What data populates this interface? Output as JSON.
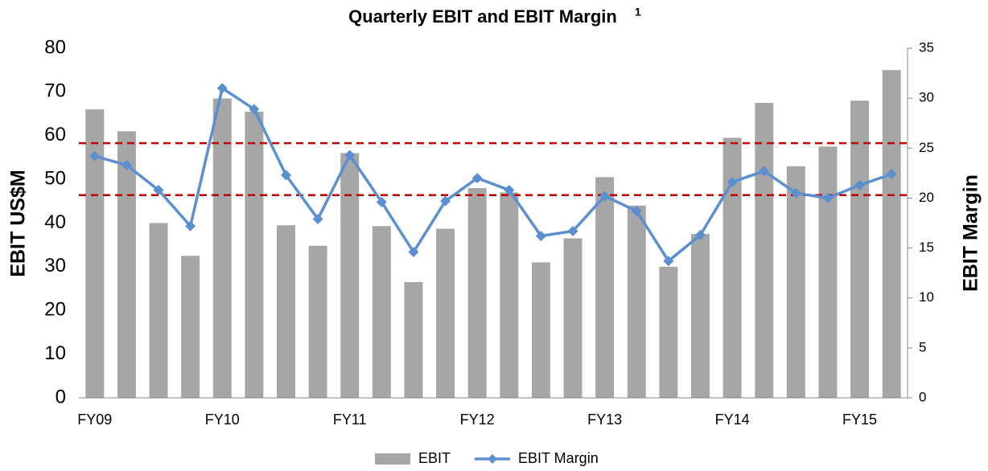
{
  "chart_data": {
    "type": "bar_line",
    "title": "Quarterly EBIT and EBIT Margin",
    "title_note": "1",
    "y_label": "EBIT US$M",
    "y2_label": "EBIT Margin",
    "categories": [
      "FY09",
      null,
      null,
      null,
      "FY10",
      null,
      null,
      null,
      "FY11",
      null,
      null,
      null,
      "FY12",
      null,
      null,
      null,
      "FY13",
      null,
      null,
      null,
      "FY14",
      null,
      null,
      null,
      "FY15",
      null
    ],
    "series": [
      {
        "name": "EBIT",
        "type": "bar",
        "color": "#a6a6a6",
        "axis": "y",
        "values": [
          66,
          61,
          40,
          32.5,
          68.5,
          65.5,
          39.5,
          34.8,
          56,
          39.3,
          26.5,
          38.7,
          48,
          47,
          31,
          36.5,
          50.5,
          44,
          30,
          37.5,
          59.5,
          67.5,
          53,
          57.5,
          68,
          75
        ]
      },
      {
        "name": "EBIT Margin",
        "type": "line",
        "color": "#5b8fd0",
        "axis": "y2",
        "values": [
          24.2,
          23.3,
          20.8,
          17.2,
          31.0,
          28.9,
          22.3,
          17.9,
          24.3,
          19.6,
          14.6,
          19.7,
          22.0,
          20.8,
          16.2,
          16.7,
          20.2,
          18.7,
          13.7,
          16.3,
          21.6,
          22.7,
          20.5,
          20.0,
          21.3,
          22.4
        ]
      }
    ],
    "reference_lines": [
      {
        "value": 25.5,
        "axis": "y2",
        "color": "#c00000"
      },
      {
        "value": 20.3,
        "axis": "y2",
        "color": "#c00000"
      }
    ],
    "ylim": [
      0,
      80
    ],
    "yticks": [
      0,
      10,
      20,
      30,
      40,
      50,
      60,
      70,
      80
    ],
    "y2lim": [
      0,
      35
    ],
    "y2ticks": [
      0,
      5,
      10,
      15,
      20,
      25,
      30,
      35
    ],
    "legend": "bottom",
    "grid": false
  }
}
